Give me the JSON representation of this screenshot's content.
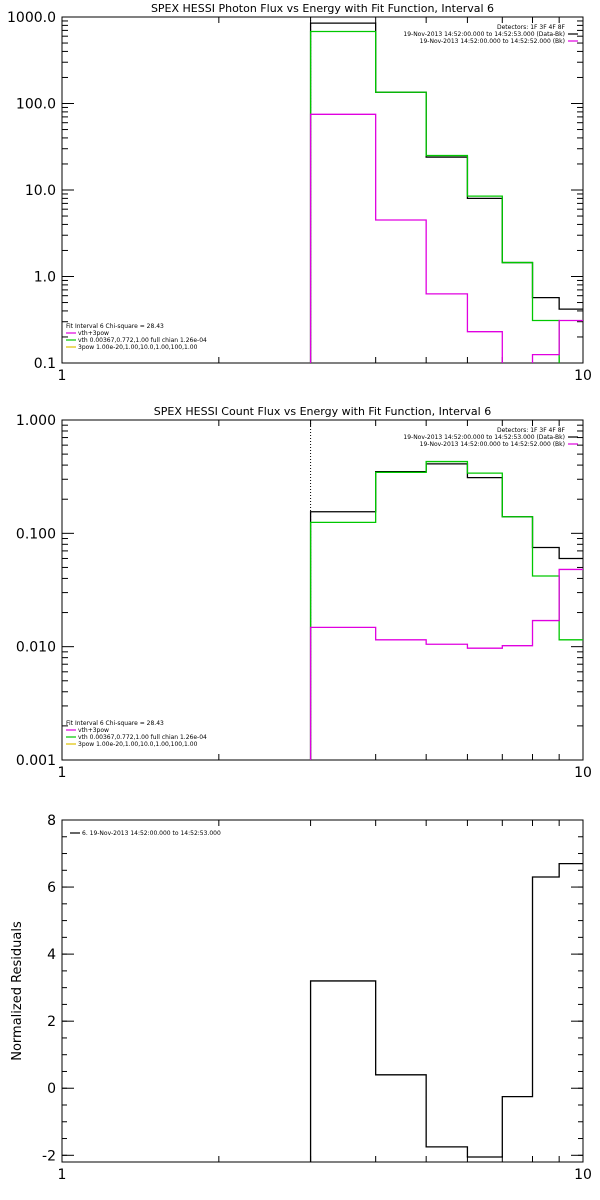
{
  "chart_data": [
    {
      "type": "line",
      "title": "SPEX HESSI Photon Flux vs Energy with Fit Function, Interval 6",
      "xlabel": "",
      "ylabel": "",
      "x_scale": "log",
      "y_scale": "log",
      "xlim": [
        1,
        10
      ],
      "ylim": [
        0.1,
        1000
      ],
      "x_ticks": [
        {
          "v": 1,
          "label": "1"
        },
        {
          "v": 10,
          "label": "10"
        }
      ],
      "y_ticks": [
        {
          "v": 0.1,
          "label": "0.1"
        },
        {
          "v": 1,
          "label": "1.0"
        },
        {
          "v": 10,
          "label": "10.0"
        },
        {
          "v": 100,
          "label": "100.0"
        },
        {
          "v": 1000,
          "label": "1000.0"
        }
      ],
      "vline_x": 3,
      "bin_edges": [
        3,
        4,
        5,
        6,
        7,
        8,
        9,
        10
      ],
      "series": [
        {
          "color": "#000000",
          "values": [
            850,
            135,
            24,
            8,
            1.45,
            0.57,
            0.42
          ]
        },
        {
          "color": "#00c800",
          "values": [
            680,
            135,
            25,
            8.5,
            1.45,
            0.31,
            0.001
          ]
        },
        {
          "color": "#e000e0",
          "values": [
            75,
            4.5,
            0.63,
            0.23,
            0.095,
            0.125,
            0.31
          ]
        }
      ],
      "legend_top": [
        {
          "text": "Detectors: 1F 3F 4F 8F",
          "color": ""
        },
        {
          "text": "19-Nov-2013 14:52:00.000 to 14:52:53.000 (Data-Bk)",
          "color": "#000000"
        },
        {
          "text": "19-Nov-2013 14:52:00.000 to 14:52:52.000 (Bk)",
          "color": "#e000e0"
        }
      ],
      "legend_bottom": [
        {
          "text": "Fit Interval  6    Chi-square = 28.43",
          "color": ""
        },
        {
          "text": "vth+3pow",
          "color": "#e000e0"
        },
        {
          "text": "vth 0.00367,0.772,1.00  full chian 1.26e-04",
          "color": "#00c800"
        },
        {
          "text": "3pow 1.00e-20,1.00,10.0,1.00,100,1.00",
          "color": "#e0c000"
        }
      ]
    },
    {
      "type": "line",
      "title": "SPEX HESSI Count Flux vs Energy with Fit Function, Interval 6",
      "xlabel": "",
      "ylabel": "",
      "x_scale": "log",
      "y_scale": "log",
      "xlim": [
        1,
        10
      ],
      "ylim": [
        0.001,
        1
      ],
      "x_ticks": [
        {
          "v": 1,
          "label": "1"
        },
        {
          "v": 10,
          "label": "10"
        }
      ],
      "y_ticks": [
        {
          "v": 0.001,
          "label": "0.001"
        },
        {
          "v": 0.01,
          "label": "0.010"
        },
        {
          "v": 0.1,
          "label": "0.100"
        },
        {
          "v": 1,
          "label": "1.000"
        }
      ],
      "vline_x": 3,
      "bin_edges": [
        3,
        4,
        5,
        6,
        7,
        8,
        9,
        10
      ],
      "series": [
        {
          "color": "#000000",
          "values": [
            0.155,
            0.35,
            0.41,
            0.31,
            0.14,
            0.075,
            0.06
          ]
        },
        {
          "color": "#00c800",
          "values": [
            0.125,
            0.345,
            0.43,
            0.34,
            0.14,
            0.042,
            0.0115
          ]
        },
        {
          "color": "#e000e0",
          "values": [
            0.0148,
            0.0115,
            0.0105,
            0.0097,
            0.0102,
            0.017,
            0.048
          ]
        }
      ],
      "legend_top": [
        {
          "text": "Detectors: 1F 3F 4F 8F",
          "color": ""
        },
        {
          "text": "19-Nov-2013 14:52:00.000 to 14:52:53.000 (Data-Bk)",
          "color": "#000000"
        },
        {
          "text": "19-Nov-2013 14:52:00.000 to 14:52:52.000 (Bk)",
          "color": "#e000e0"
        }
      ],
      "legend_bottom": [
        {
          "text": "Fit Interval  6    Chi-square = 28.43",
          "color": ""
        },
        {
          "text": "vth+3pow",
          "color": "#e000e0"
        },
        {
          "text": "vth 0.00367,0.772,1.00  full chian 1.26e-04",
          "color": "#00c800"
        },
        {
          "text": "3pow 1.00e-20,1.00,10.0,1.00,100,1.00",
          "color": "#e0c000"
        }
      ]
    },
    {
      "type": "line",
      "title": "",
      "xlabel": "",
      "ylabel": "Normalized Residuals",
      "x_scale": "log",
      "y_scale": "linear",
      "xlim": [
        1,
        10
      ],
      "ylim": [
        -2.2,
        8
      ],
      "x_ticks": [
        {
          "v": 1,
          "label": "1"
        },
        {
          "v": 10,
          "label": "10"
        }
      ],
      "y_ticks": [
        {
          "v": -2,
          "label": "-2"
        },
        {
          "v": 0,
          "label": "0"
        },
        {
          "v": 2,
          "label": "2"
        },
        {
          "v": 4,
          "label": "4"
        },
        {
          "v": 6,
          "label": "6"
        },
        {
          "v": 8,
          "label": "8"
        }
      ],
      "bin_edges": [
        3,
        4,
        5,
        6,
        7,
        8,
        9,
        10
      ],
      "series": [
        {
          "color": "#000000",
          "values": [
            3.2,
            0.4,
            -1.75,
            -2.05,
            -0.25,
            6.3,
            6.7
          ]
        }
      ],
      "legend_top_left": [
        {
          "text": "6. 19-Nov-2013 14:52:00.000 to 14:52:53.000",
          "color": "#000000"
        }
      ]
    }
  ]
}
